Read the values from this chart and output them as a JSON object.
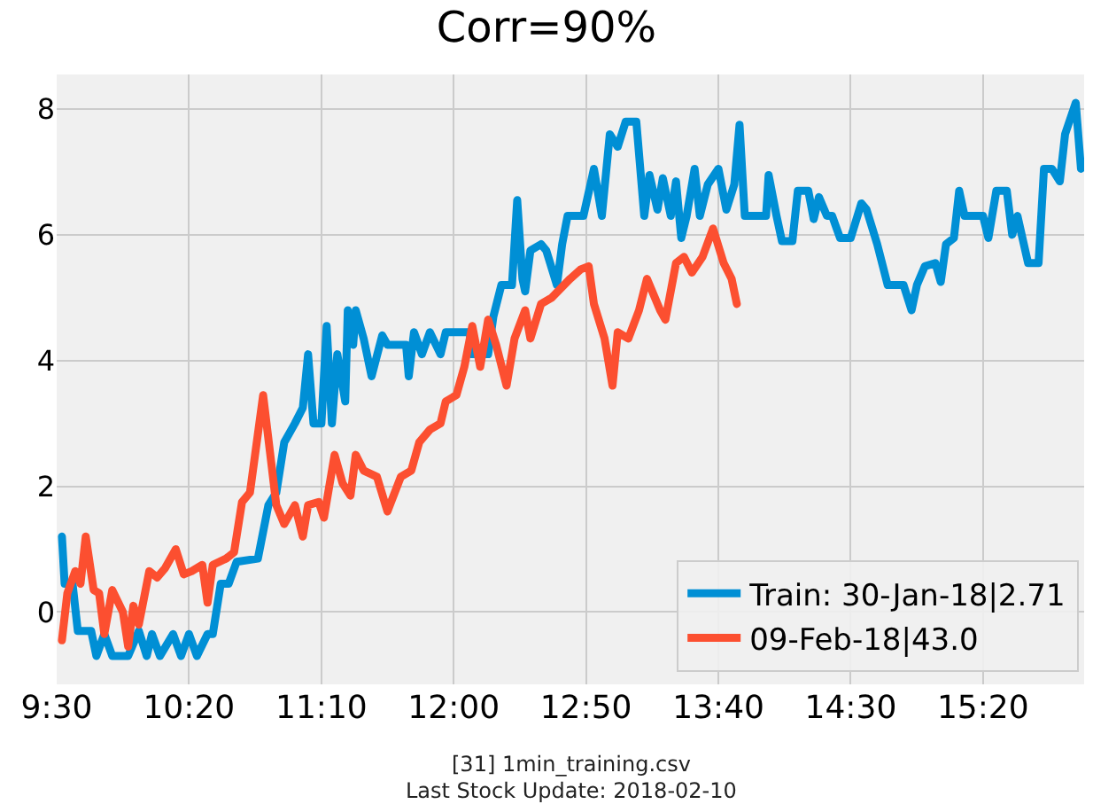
{
  "chart_data": {
    "type": "line",
    "title": "Corr=90%",
    "annotations": [
      "[31] 1min_training.csv",
      "Last Stock Update: 2018-02-10"
    ],
    "xlim": [
      9.5,
      15.97
    ],
    "ylim": [
      -1.15,
      8.55
    ],
    "xticks": [
      {
        "value": 9.5,
        "label": "9:30"
      },
      {
        "value": 10.333,
        "label": "10:20"
      },
      {
        "value": 11.167,
        "label": "11:10"
      },
      {
        "value": 12.0,
        "label": "12:00"
      },
      {
        "value": 12.833,
        "label": "12:50"
      },
      {
        "value": 13.667,
        "label": "13:40"
      },
      {
        "value": 14.5,
        "label": "14:30"
      },
      {
        "value": 15.333,
        "label": "15:20"
      }
    ],
    "yticks": [
      0,
      2,
      4,
      6,
      8
    ],
    "grid": true,
    "legend": "bottom right",
    "line_style": "solid",
    "marker": "none",
    "series": [
      {
        "name": "Train: 30-Jan-18|2.71",
        "color": "#008fd5",
        "x": [
          9.533,
          9.55,
          9.6,
          9.633,
          9.717,
          9.75,
          9.8,
          9.85,
          9.95,
          10.017,
          10.067,
          10.1,
          10.15,
          10.233,
          10.283,
          10.333,
          10.383,
          10.45,
          10.483,
          10.533,
          10.583,
          10.633,
          10.767,
          10.833,
          10.883,
          10.933,
          11.0,
          11.05,
          11.083,
          11.117,
          11.167,
          11.2,
          11.233,
          11.267,
          11.317,
          11.333,
          11.367,
          11.383,
          11.433,
          11.483,
          11.55,
          11.583,
          11.7,
          11.717,
          11.75,
          11.8,
          11.85,
          11.917,
          11.95,
          12.1,
          12.117,
          12.217,
          12.25,
          12.3,
          12.367,
          12.4,
          12.433,
          12.45,
          12.483,
          12.55,
          12.583,
          12.65,
          12.683,
          12.717,
          12.817,
          12.883,
          12.933,
          12.983,
          13.033,
          13.083,
          13.15,
          13.2,
          13.233,
          13.283,
          13.317,
          13.367,
          13.4,
          13.433,
          13.467,
          13.517,
          13.55,
          13.6,
          13.667,
          13.717,
          13.767,
          13.8,
          13.833,
          13.967,
          13.983,
          14.033,
          14.067,
          14.133,
          14.167,
          14.233,
          14.267,
          14.3,
          14.35,
          14.383,
          14.433,
          14.5,
          14.567,
          14.6,
          14.667,
          14.733,
          14.833,
          14.883,
          14.917,
          14.967,
          15.033,
          15.067,
          15.1,
          15.15,
          15.183,
          15.217,
          15.333,
          15.367,
          15.417,
          15.483,
          15.517,
          15.55,
          15.617,
          15.683,
          15.717,
          15.767,
          15.817,
          15.85,
          15.917,
          15.95
        ],
        "values": [
          1.2,
          0.45,
          0.45,
          -0.3,
          -0.3,
          -0.7,
          -0.35,
          -0.7,
          -0.7,
          -0.3,
          -0.7,
          -0.35,
          -0.7,
          -0.35,
          -0.7,
          -0.35,
          -0.7,
          -0.35,
          -0.35,
          0.45,
          0.45,
          0.8,
          0.85,
          1.7,
          1.9,
          2.7,
          3.0,
          3.25,
          4.1,
          3.0,
          3.0,
          4.55,
          3.0,
          4.1,
          3.35,
          4.8,
          4.25,
          4.8,
          4.35,
          3.75,
          4.4,
          4.25,
          4.25,
          3.75,
          4.45,
          4.1,
          4.45,
          4.1,
          4.45,
          4.45,
          4.1,
          4.1,
          4.7,
          5.2,
          5.2,
          6.55,
          5.3,
          5.1,
          5.75,
          5.85,
          5.75,
          5.2,
          5.85,
          6.3,
          6.3,
          7.05,
          6.3,
          7.6,
          7.4,
          7.8,
          7.8,
          6.3,
          6.95,
          6.4,
          6.9,
          6.3,
          6.85,
          5.95,
          6.3,
          7.05,
          6.3,
          6.8,
          7.05,
          6.4,
          6.8,
          7.75,
          6.3,
          6.3,
          6.95,
          6.3,
          5.9,
          5.9,
          6.7,
          6.7,
          6.25,
          6.6,
          6.3,
          6.3,
          5.95,
          5.95,
          6.5,
          6.4,
          5.85,
          5.2,
          5.2,
          4.8,
          5.2,
          5.5,
          5.55,
          5.25,
          5.85,
          5.95,
          6.7,
          6.3,
          6.3,
          5.95,
          6.7,
          6.7,
          6.0,
          6.3,
          5.55,
          5.55,
          7.05,
          7.05,
          6.85,
          7.6,
          8.1,
          7.05
        ]
      },
      {
        "name": "09-Feb-18|43.0",
        "color": "#fc4f30",
        "x": [
          9.533,
          9.567,
          9.617,
          9.65,
          9.683,
          9.733,
          9.767,
          9.8,
          9.85,
          9.917,
          9.95,
          9.983,
          10.017,
          10.083,
          10.133,
          10.183,
          10.25,
          10.3,
          10.35,
          10.417,
          10.45,
          10.483,
          10.567,
          10.617,
          10.667,
          10.717,
          10.8,
          10.85,
          10.883,
          10.933,
          11.0,
          11.05,
          11.083,
          11.15,
          11.183,
          11.25,
          11.3,
          11.35,
          11.383,
          11.433,
          11.517,
          11.583,
          11.667,
          11.733,
          11.783,
          11.85,
          11.917,
          11.95,
          12.017,
          12.067,
          12.117,
          12.167,
          12.217,
          12.267,
          12.333,
          12.383,
          12.45,
          12.483,
          12.55,
          12.617,
          12.733,
          12.8,
          12.85,
          12.883,
          12.95,
          13.0,
          13.033,
          13.1,
          13.167,
          13.217,
          13.3,
          13.333,
          13.4,
          13.45,
          13.5,
          13.567,
          13.633,
          13.7,
          13.75,
          13.783
        ],
        "values": [
          -0.45,
          0.3,
          0.65,
          0.45,
          1.2,
          0.35,
          0.3,
          -0.35,
          0.35,
          0,
          -0.55,
          0.1,
          -0.2,
          0.65,
          0.55,
          0.7,
          1.0,
          0.6,
          0.65,
          0.75,
          0.15,
          0.75,
          0.85,
          0.95,
          1.75,
          1.9,
          3.45,
          2.4,
          1.7,
          1.4,
          1.7,
          1.2,
          1.7,
          1.75,
          1.5,
          2.5,
          2.05,
          1.85,
          2.5,
          2.25,
          2.15,
          1.6,
          2.15,
          2.25,
          2.7,
          2.9,
          3.0,
          3.35,
          3.45,
          3.9,
          4.55,
          3.9,
          4.65,
          4.25,
          3.6,
          4.35,
          4.8,
          4.35,
          4.9,
          5.0,
          5.3,
          5.45,
          5.5,
          4.9,
          4.35,
          3.6,
          4.45,
          4.35,
          4.8,
          5.3,
          4.8,
          4.65,
          5.55,
          5.65,
          5.4,
          5.65,
          6.1,
          5.55,
          5.3,
          4.9
        ]
      }
    ]
  }
}
